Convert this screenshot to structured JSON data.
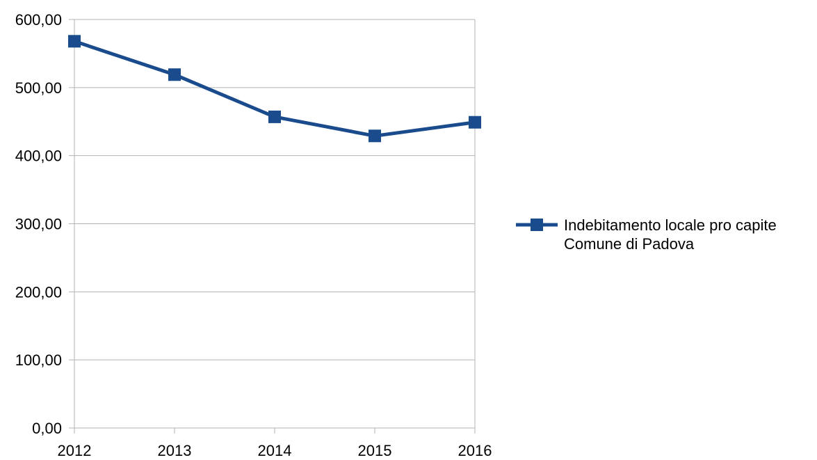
{
  "chart_data": {
    "type": "line",
    "categories": [
      "2012",
      "2013",
      "2014",
      "2015",
      "2016"
    ],
    "series": [
      {
        "name": "Indebitamento locale pro capite Comune di Padova",
        "legend_lines": [
          "Indebitamento locale pro capite",
          "Comune di Padova"
        ],
        "values": [
          568,
          519,
          457,
          429,
          449
        ],
        "color": "#1a4b8c",
        "marker": "square"
      }
    ],
    "ylim": [
      0,
      600
    ],
    "yticks": [
      "0,00",
      "100,00",
      "200,00",
      "300,00",
      "400,00",
      "500,00",
      "600,00"
    ],
    "ytick_values": [
      0,
      100,
      200,
      300,
      400,
      500,
      600
    ],
    "grid": true,
    "legend_position": "right",
    "title": "",
    "xlabel": "",
    "ylabel": ""
  },
  "colors": {
    "grid": "#b3b3b3",
    "axis": "#b3b3b3",
    "series": "#1a4b8c"
  }
}
